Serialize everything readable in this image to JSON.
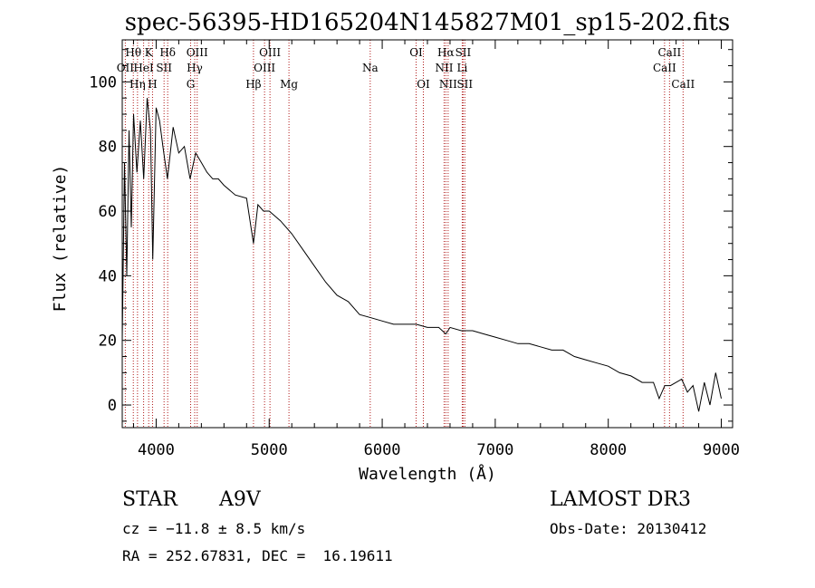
{
  "chart_data": {
    "type": "line",
    "title": "spec-56395-HD165204N145827M01_sp15-202.fits",
    "xlabel": "Wavelength (Å)",
    "ylabel": "Flux (relative)",
    "xlim": [
      3700,
      9100
    ],
    "ylim": [
      -7,
      113
    ],
    "xticks": [
      4000,
      5000,
      6000,
      7000,
      8000,
      9000
    ],
    "yticks": [
      0,
      20,
      40,
      60,
      80,
      100
    ],
    "grid": false,
    "series": [
      {
        "name": "spectrum",
        "x": [
          3700,
          3720,
          3740,
          3760,
          3780,
          3800,
          3830,
          3860,
          3890,
          3920,
          3950,
          3970,
          4000,
          4030,
          4060,
          4100,
          4150,
          4200,
          4250,
          4300,
          4350,
          4400,
          4450,
          4500,
          4550,
          4600,
          4700,
          4800,
          4861,
          4900,
          4950,
          5000,
          5100,
          5200,
          5300,
          5400,
          5500,
          5600,
          5700,
          5800,
          5900,
          6000,
          6100,
          6200,
          6300,
          6400,
          6500,
          6563,
          6600,
          6700,
          6800,
          6900,
          7000,
          7100,
          7200,
          7300,
          7400,
          7500,
          7600,
          7700,
          7800,
          7900,
          8000,
          8100,
          8200,
          8300,
          8400,
          8450,
          8500,
          8550,
          8600,
          8650,
          8700,
          8750,
          8800,
          8850,
          8900,
          8950,
          9000
        ],
        "y": [
          20,
          75,
          40,
          85,
          55,
          90,
          72,
          88,
          70,
          95,
          85,
          45,
          92,
          88,
          80,
          70,
          86,
          78,
          80,
          70,
          78,
          75,
          72,
          70,
          70,
          68,
          65,
          64,
          50,
          62,
          60,
          60,
          57,
          53,
          48,
          43,
          38,
          34,
          32,
          28,
          27,
          26,
          25,
          25,
          25,
          24,
          24,
          22,
          24,
          23,
          23,
          22,
          21,
          20,
          19,
          19,
          18,
          17,
          17,
          15,
          14,
          13,
          12,
          10,
          9,
          7,
          7,
          2,
          6,
          6,
          7,
          8,
          4,
          6,
          -2,
          7,
          0,
          10,
          2
        ]
      }
    ],
    "lines": [
      {
        "label": "Hθ",
        "x": 3798,
        "row": 1
      },
      {
        "label": "OII",
        "x": 3727,
        "row": 2
      },
      {
        "label": "Hη",
        "x": 3835,
        "row": 3
      },
      {
        "label": "K",
        "x": 3934,
        "row": 1
      },
      {
        "label": "HeI",
        "x": 3889,
        "row": 2
      },
      {
        "label": "H",
        "x": 3968,
        "row": 3
      },
      {
        "label": "Hδ",
        "x": 4102,
        "row": 1
      },
      {
        "label": "SII",
        "x": 4070,
        "row": 2
      },
      {
        "label": "OIII",
        "x": 4363,
        "row": 1
      },
      {
        "label": "Hγ",
        "x": 4341,
        "row": 2
      },
      {
        "label": "G",
        "x": 4305,
        "row": 3
      },
      {
        "label": "Hβ",
        "x": 4861,
        "row": 3
      },
      {
        "label": "OIII",
        "x": 5007,
        "row": 1
      },
      {
        "label": "OIII",
        "x": 4959,
        "row": 2
      },
      {
        "label": "Mg",
        "x": 5175,
        "row": 3
      },
      {
        "label": "Na",
        "x": 5894,
        "row": 2
      },
      {
        "label": "OI",
        "x": 6300,
        "row": 1
      },
      {
        "label": "OI",
        "x": 6364,
        "row": 3
      },
      {
        "label": "Hα",
        "x": 6563,
        "row": 1
      },
      {
        "label": "NII",
        "x": 6548,
        "row": 2
      },
      {
        "label": "NII",
        "x": 6583,
        "row": 3
      },
      {
        "label": "SII",
        "x": 6716,
        "row": 1
      },
      {
        "label": "Li",
        "x": 6708,
        "row": 2
      },
      {
        "label": "SII",
        "x": 6731,
        "row": 3
      },
      {
        "label": "CaII",
        "x": 8542,
        "row": 1
      },
      {
        "label": "CaII",
        "x": 8498,
        "row": 2
      },
      {
        "label": "CaII",
        "x": 8662,
        "row": 3
      }
    ]
  },
  "info": {
    "class": "STAR",
    "subclass": "A9V",
    "survey": "LAMOST DR3",
    "cz": "cz = −11.8 ± 8.5 km/s",
    "obs_date": "Obs-Date: 20130412",
    "coords": "RA = 252.67831, DEC =  16.19611"
  }
}
